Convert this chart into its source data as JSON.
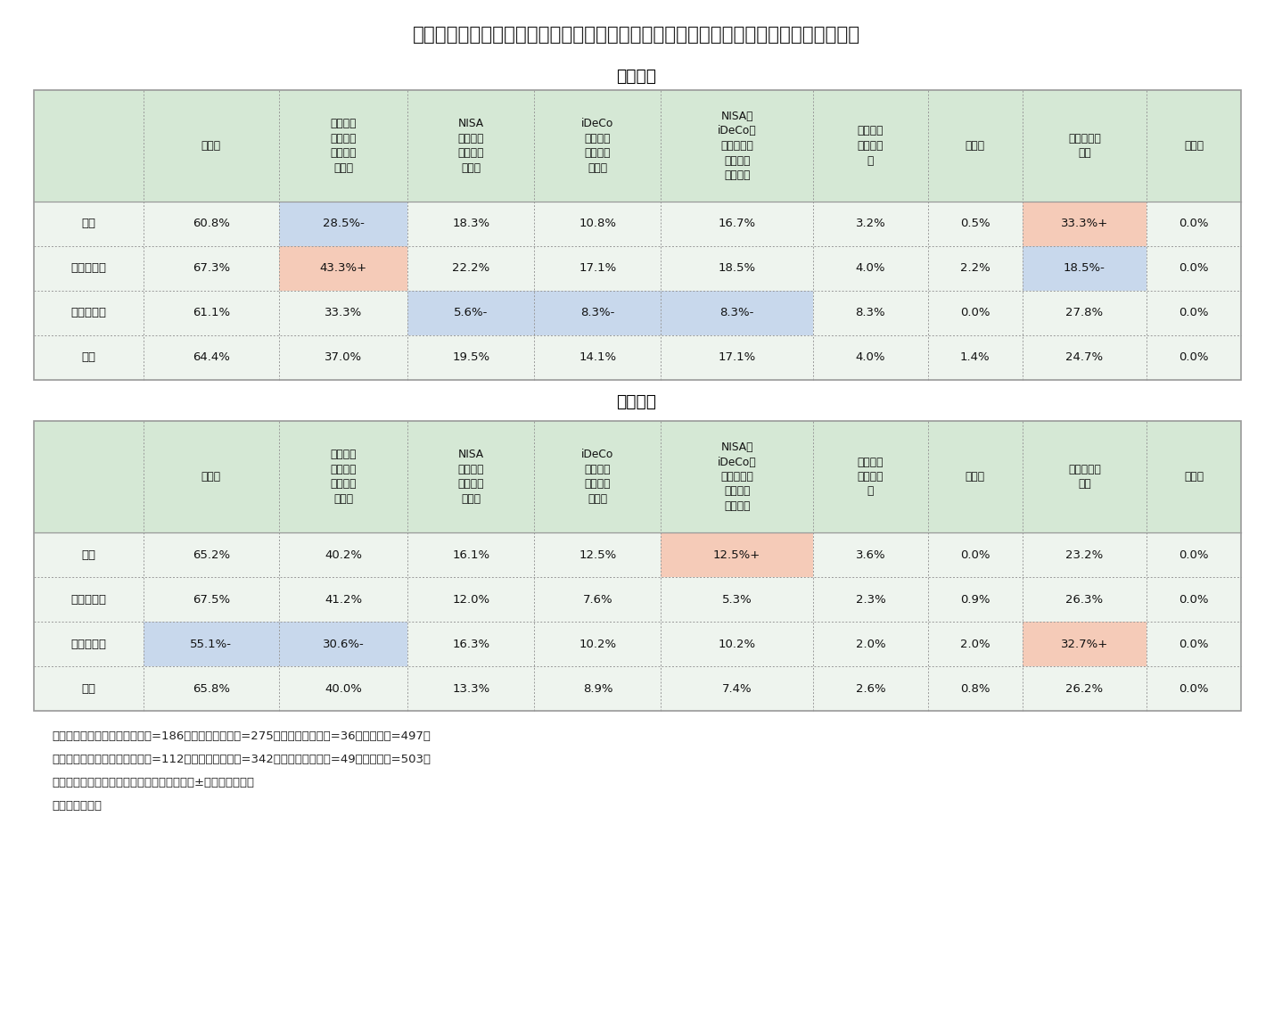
{
  "title": "図表３　性・配偶関係別にみた老後の生活資金の備えとして行っていること（中年層）",
  "male_label": "〈男性〉",
  "female_label": "〈女性〉",
  "col_headers": [
    "預貯金",
    "生命保険\n（個人年\n金・終身\n保険）",
    "NISA\n（小型投\n資非課税\n制度）",
    "iDeCo\n（個人型\n確定拠出\n年金）",
    "NISA、\niDeCo以\n外の株式・\n債権等の\n有価証券",
    "不動産の\n売買や賃\n貸",
    "その他",
    "準備してい\nない",
    "無回答"
  ],
  "row_labels": [
    "未婚",
    "配偶者あり",
    "離別・死別",
    "全体"
  ],
  "male_data": [
    [
      "60.8%",
      "28.5%-",
      "18.3%",
      "10.8%",
      "16.7%",
      "3.2%",
      "0.5%",
      "33.3%+",
      "0.0%"
    ],
    [
      "67.3%",
      "43.3%+",
      "22.2%",
      "17.1%",
      "18.5%",
      "4.0%",
      "2.2%",
      "18.5%-",
      "0.0%"
    ],
    [
      "61.1%",
      "33.3%",
      "5.6%-",
      "8.3%-",
      "8.3%-",
      "8.3%",
      "0.0%",
      "27.8%",
      "0.0%"
    ],
    [
      "64.4%",
      "37.0%",
      "19.5%",
      "14.1%",
      "17.1%",
      "4.0%",
      "1.4%",
      "24.7%",
      "0.0%"
    ]
  ],
  "female_data": [
    [
      "65.2%",
      "40.2%",
      "16.1%",
      "12.5%",
      "12.5%+",
      "3.6%",
      "0.0%",
      "23.2%",
      "0.0%"
    ],
    [
      "67.5%",
      "41.2%",
      "12.0%",
      "7.6%",
      "5.3%",
      "2.3%",
      "0.9%",
      "26.3%",
      "0.0%"
    ],
    [
      "55.1%-",
      "30.6%-",
      "16.3%",
      "10.2%",
      "10.2%",
      "2.0%",
      "2.0%",
      "32.7%+",
      "0.0%"
    ],
    [
      "65.8%",
      "40.0%",
      "13.3%",
      "8.9%",
      "7.4%",
      "2.6%",
      "0.8%",
      "26.2%",
      "0.0%"
    ]
  ],
  "male_cell_colors": [
    [
      "#eef4ee",
      "#c8d8ec",
      "#eef4ee",
      "#eef4ee",
      "#eef4ee",
      "#eef4ee",
      "#eef4ee",
      "#f5cbb8",
      "#eef4ee"
    ],
    [
      "#eef4ee",
      "#f5cbb8",
      "#eef4ee",
      "#eef4ee",
      "#eef4ee",
      "#eef4ee",
      "#eef4ee",
      "#c8d8ec",
      "#eef4ee"
    ],
    [
      "#eef4ee",
      "#eef4ee",
      "#c8d8ec",
      "#c8d8ec",
      "#c8d8ec",
      "#eef4ee",
      "#eef4ee",
      "#eef4ee",
      "#eef4ee"
    ],
    [
      "#eef4ee",
      "#eef4ee",
      "#eef4ee",
      "#eef4ee",
      "#eef4ee",
      "#eef4ee",
      "#eef4ee",
      "#eef4ee",
      "#eef4ee"
    ]
  ],
  "female_cell_colors": [
    [
      "#eef4ee",
      "#eef4ee",
      "#eef4ee",
      "#eef4ee",
      "#f5cbb8",
      "#eef4ee",
      "#eef4ee",
      "#eef4ee",
      "#eef4ee"
    ],
    [
      "#eef4ee",
      "#eef4ee",
      "#eef4ee",
      "#eef4ee",
      "#eef4ee",
      "#eef4ee",
      "#eef4ee",
      "#eef4ee",
      "#eef4ee"
    ],
    [
      "#c8d8ec",
      "#c8d8ec",
      "#eef4ee",
      "#eef4ee",
      "#eef4ee",
      "#eef4ee",
      "#eef4ee",
      "#f5cbb8",
      "#eef4ee"
    ],
    [
      "#eef4ee",
      "#eef4ee",
      "#eef4ee",
      "#eef4ee",
      "#eef4ee",
      "#eef4ee",
      "#eef4ee",
      "#eef4ee",
      "#eef4ee"
    ]
  ],
  "header_bg": "#d5e8d5",
  "row_label_bg": "#eef4ee",
  "note1": "（備考１）男性のｎは「未婚」=186、「配偶者あり」=275、「離別・死別」=36、「全体」=497。",
  "note2": "　　　　　女性のｎは「未婚」=112、「配偶者あり」=342、「離別・死別」=49、「全体」=503。",
  "note3": "（備考２）全体より５％以上の差がある値に±表記、網掛け。",
  "note4": "（資料）同上。",
  "border_color": "#999999",
  "background_color": "#ffffff"
}
